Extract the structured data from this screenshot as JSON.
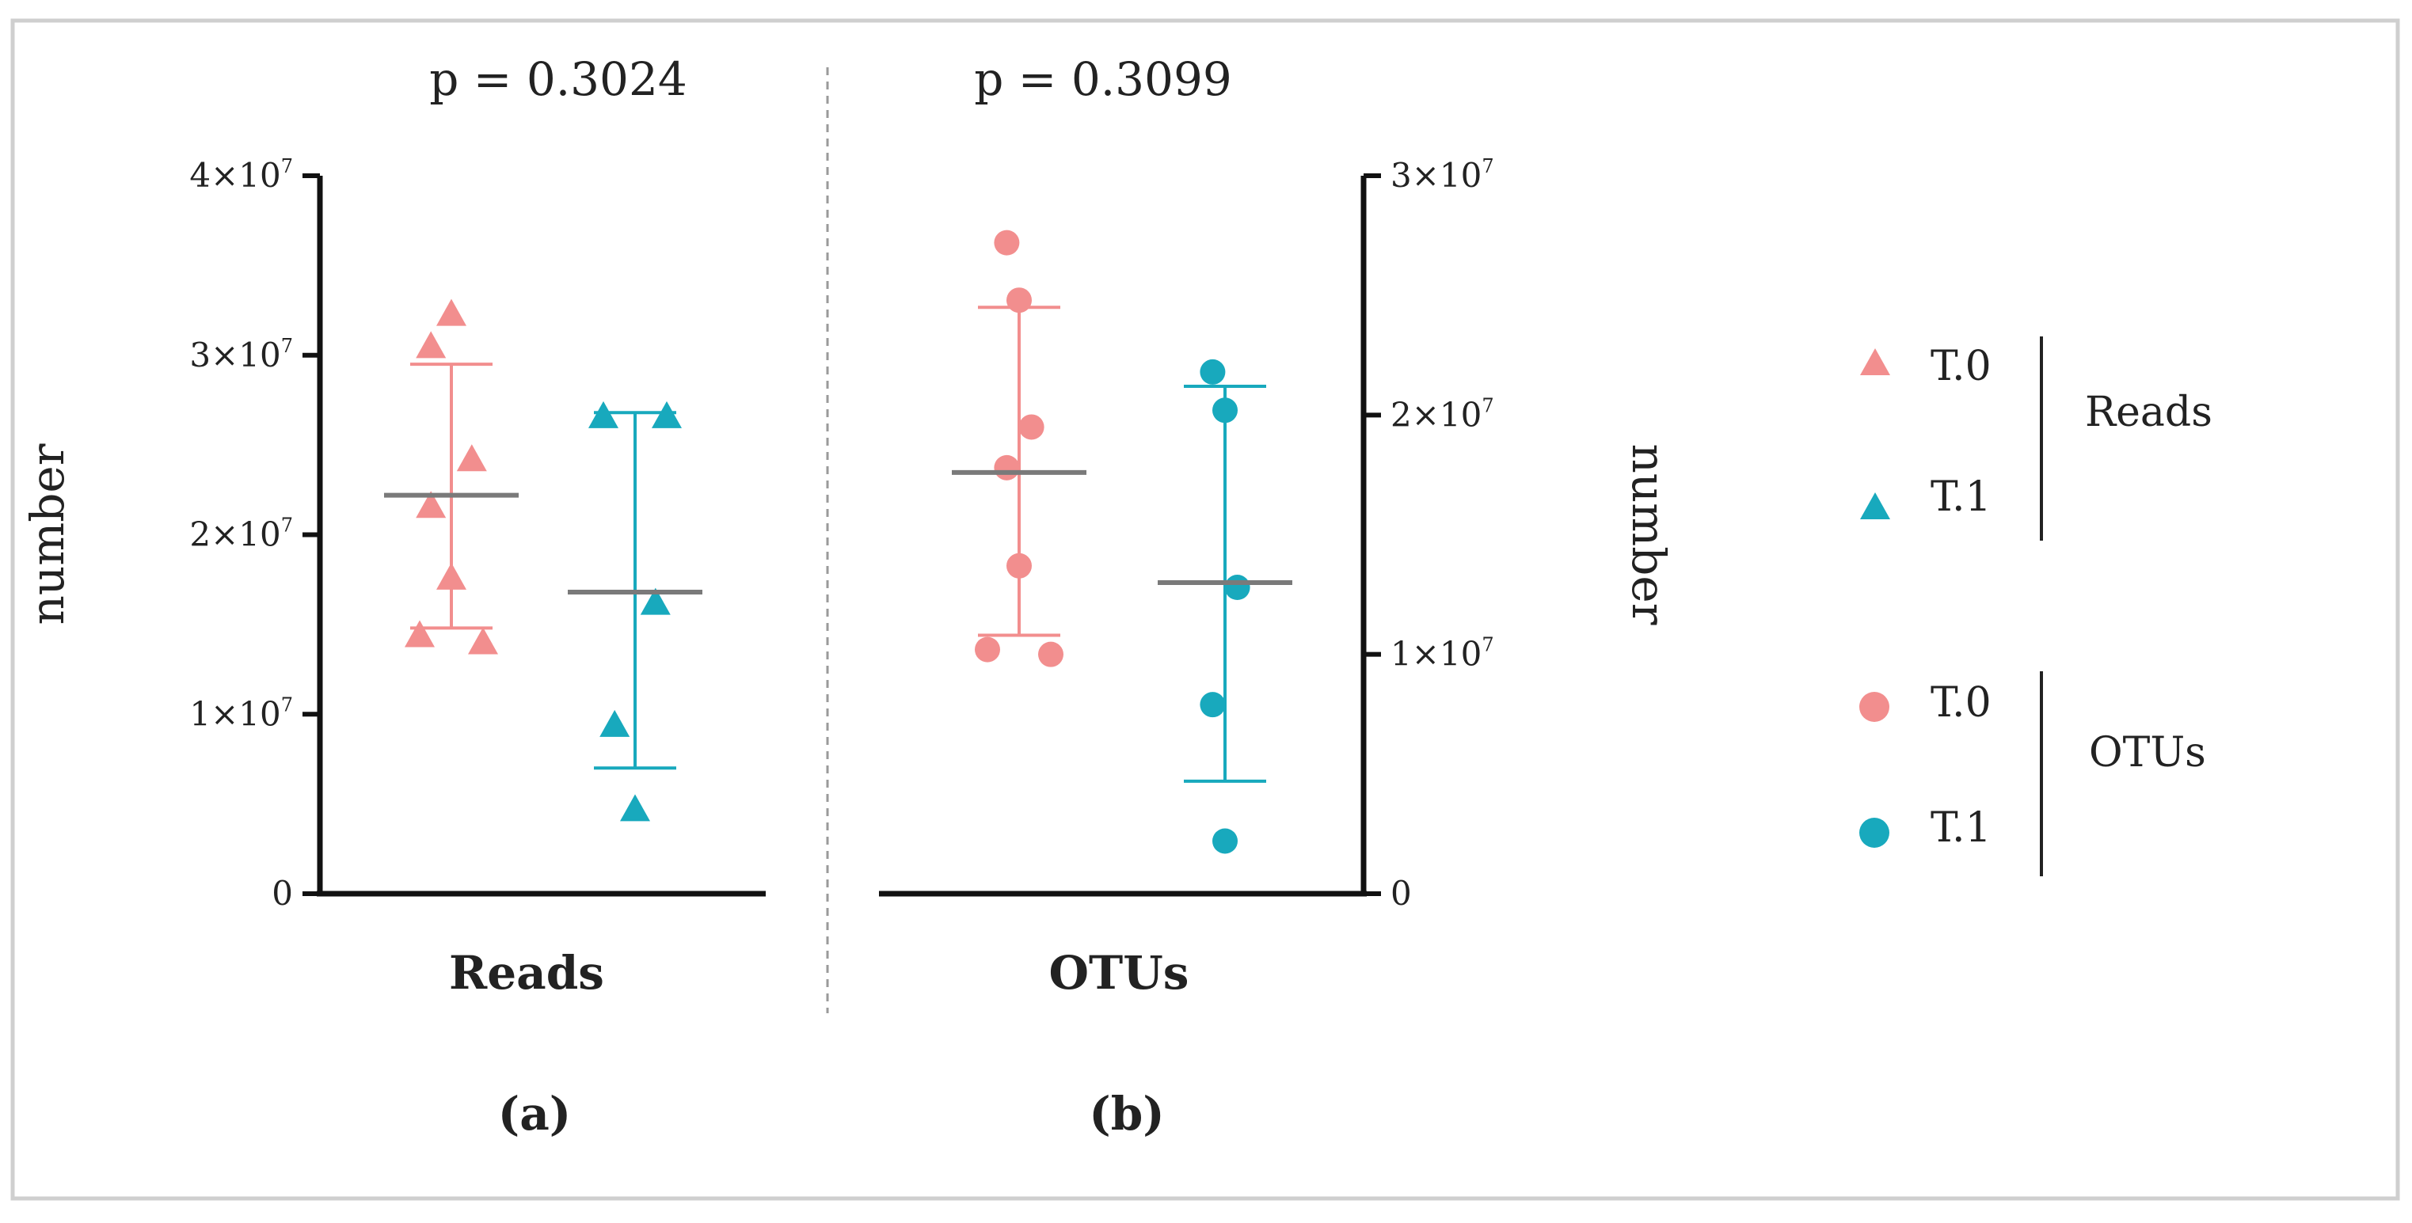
{
  "colors": {
    "t0": "#f28e8e",
    "t1": "#18a9bd",
    "median": "#7a7a7a",
    "axis": "#111111",
    "frame": "#cfcfcf",
    "divider": "#9a9a9a"
  },
  "chart_data": [
    {
      "type": "scatter",
      "panel_label": "(a)",
      "category": "Reads",
      "p_value": "p = 0.3024",
      "ylabel": "number",
      "ylim": [
        0,
        40000000
      ],
      "yticks": [
        {
          "value": 0,
          "base": "0",
          "exp": ""
        },
        {
          "value": 10000000,
          "base": "1×10",
          "exp": "7"
        },
        {
          "value": 20000000,
          "base": "2×10",
          "exp": "7"
        },
        {
          "value": 30000000,
          "base": "3×10",
          "exp": "7"
        },
        {
          "value": 40000000,
          "base": "4×10",
          "exp": "7"
        }
      ],
      "axis_side": "left",
      "marker": "triangle",
      "series": [
        {
          "name": "T.0",
          "color_key": "t0",
          "values": [
            30500000,
            32300000,
            24200000,
            21600000,
            17600000,
            14400000,
            14000000
          ],
          "median": 22200000,
          "err_low": 14800000,
          "err_high": 29500000
        },
        {
          "name": "T.1",
          "color_key": "t1",
          "values": [
            26600000,
            26600000,
            16200000,
            9400000,
            4700000
          ],
          "median": 16800000,
          "err_low": 7000000,
          "err_high": 26800000
        }
      ]
    },
    {
      "type": "scatter",
      "panel_label": "(b)",
      "category": "OTUs",
      "p_value": "p = 0.3099",
      "ylabel": "number",
      "ylim": [
        0,
        30000000
      ],
      "yticks": [
        {
          "value": 0,
          "base": "0",
          "exp": ""
        },
        {
          "value": 10000000,
          "base": "1×10",
          "exp": "7"
        },
        {
          "value": 20000000,
          "base": "2×10",
          "exp": "7"
        },
        {
          "value": 30000000,
          "base": "3×10",
          "exp": "7"
        }
      ],
      "axis_side": "right",
      "marker": "circle",
      "series": [
        {
          "name": "T.0",
          "color_key": "t0",
          "values": [
            27200000,
            24800000,
            19500000,
            17800000,
            13700000,
            10200000,
            10000000
          ],
          "median": 17600000,
          "err_low": 10800000,
          "err_high": 24500000
        },
        {
          "name": "T.1",
          "color_key": "t1",
          "values": [
            21800000,
            20200000,
            12800000,
            7900000,
            2200000
          ],
          "median": 13000000,
          "err_low": 4700000,
          "err_high": 21200000
        }
      ]
    }
  ],
  "legend": {
    "groups": [
      {
        "label": "Reads",
        "marker": "triangle",
        "items": [
          {
            "label": "T.0",
            "color_key": "t0"
          },
          {
            "label": "T.1",
            "color_key": "t1"
          }
        ]
      },
      {
        "label": "OTUs",
        "marker": "circle",
        "items": [
          {
            "label": "T.0",
            "color_key": "t0"
          },
          {
            "label": "T.1",
            "color_key": "t1"
          }
        ]
      }
    ]
  }
}
